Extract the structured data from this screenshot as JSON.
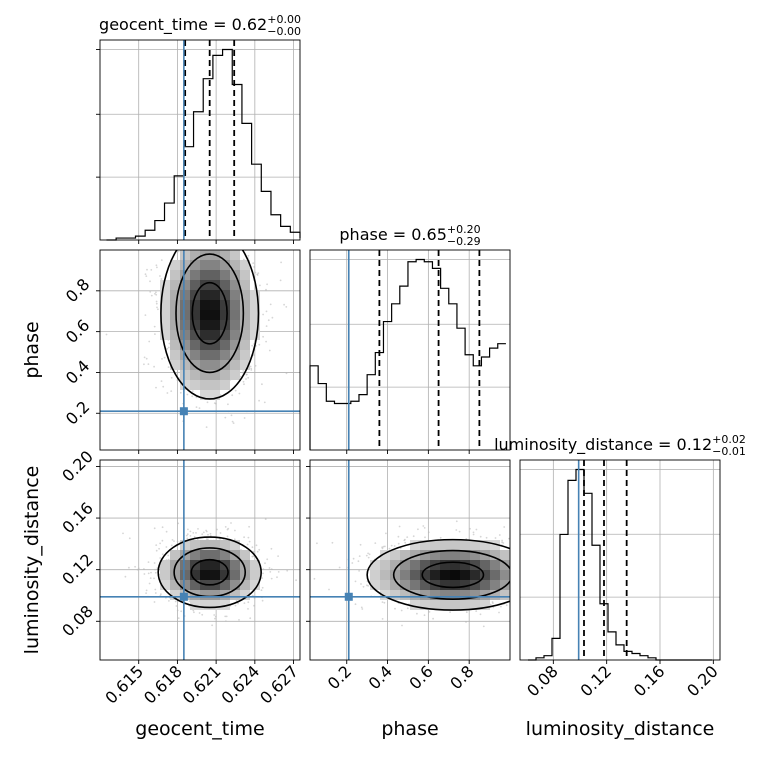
{
  "chart_data": {
    "type": "corner",
    "parameters": [
      {
        "key": "geocent_time",
        "axis_label": "geocent_time",
        "title_prefix": "geocent_time = 0.62",
        "title_sup": "+0.00",
        "title_sub": "−0.00",
        "range": [
          0.612,
          0.6275
        ],
        "ticks": [
          0.615,
          0.618,
          0.621,
          0.624,
          0.627
        ],
        "tick_labels": [
          "0.615",
          "0.618",
          "0.621",
          "0.624",
          "0.627"
        ],
        "injection": 0.6185,
        "quantiles": [
          0.6186,
          0.6205,
          0.6224
        ],
        "hist": {
          "edges_start": 0.6125,
          "bin_width": 0.00075,
          "counts": [
            0,
            1,
            1,
            2,
            5,
            10,
            19,
            33,
            48,
            66,
            83,
            95,
            98,
            80,
            60,
            39,
            25,
            13,
            7,
            4,
            2,
            1
          ]
        }
      },
      {
        "key": "phase",
        "axis_label": "phase",
        "title_prefix": "phase = 0.65",
        "title_sup": "+0.20",
        "title_sub": "−0.29",
        "range": [
          0.02,
          1.0
        ],
        "ticks": [
          0.2,
          0.4,
          0.6,
          0.8
        ],
        "tick_labels": [
          "0.2",
          "0.4",
          "0.6",
          "0.8"
        ],
        "injection": 0.21,
        "quantiles": [
          0.36,
          0.65,
          0.85
        ],
        "hist": {
          "edges_start": 0.02,
          "bin_width": 0.04,
          "counts": [
            38,
            30,
            22,
            21,
            21,
            22,
            25,
            34,
            44,
            58,
            66,
            74,
            85,
            86,
            85,
            82,
            73,
            66,
            55,
            43,
            38,
            42,
            46,
            48
          ]
        }
      },
      {
        "key": "luminosity_distance",
        "axis_label": "luminosity_distance",
        "title_prefix": "luminosity_distance = 0.12",
        "title_sup": "+0.02",
        "title_sub": "−0.01",
        "range": [
          0.055,
          0.205
        ],
        "ticks": [
          0.08,
          0.12,
          0.16,
          0.2
        ],
        "tick_labels": [
          "0.08",
          "0.12",
          "0.16",
          "0.20"
        ],
        "injection": 0.099,
        "quantiles": [
          0.103,
          0.118,
          0.135
        ],
        "hist": {
          "edges_start": 0.061,
          "bin_width": 0.006,
          "counts": [
            0,
            1,
            2,
            10,
            58,
            83,
            88,
            77,
            53,
            26,
            13,
            7,
            4,
            3,
            2,
            1,
            0,
            0,
            0,
            0,
            0,
            0,
            0
          ]
        }
      }
    ],
    "pairs": [
      {
        "x": "geocent_time",
        "y": "phase",
        "peak": [
          0.6205,
          0.69
        ],
        "spread": [
          0.0018,
          0.2
        ],
        "ylim": [
          0.02,
          1.0
        ],
        "ticks_y": [
          0.2,
          0.4,
          0.6,
          0.8
        ],
        "tick_labels_y": [
          "0.2",
          "0.4",
          "0.6",
          "0.8"
        ]
      },
      {
        "x": "geocent_time",
        "y": "luminosity_distance",
        "peak": [
          0.6205,
          0.118
        ],
        "spread": [
          0.0019,
          0.013
        ],
        "ylim": [
          0.05,
          0.205
        ],
        "ticks_y": [
          0.08,
          0.12,
          0.16,
          0.2
        ],
        "tick_labels_y": [
          "0.08",
          "0.12",
          "0.16",
          "0.20"
        ]
      },
      {
        "x": "phase",
        "y": "luminosity_distance",
        "peak": [
          0.72,
          0.116
        ],
        "spread": [
          0.2,
          0.013
        ],
        "ylim": [
          0.05,
          0.205
        ]
      }
    ],
    "injection_color": "#4682b4",
    "quantile_style": "dashed",
    "hist_style": "step",
    "grid": true,
    "contour_levels": 3
  }
}
